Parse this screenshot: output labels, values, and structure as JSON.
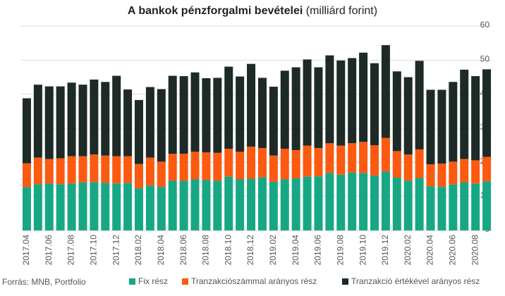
{
  "chart_data": {
    "type": "stacked_bar",
    "title": "A bankok pénzforgalmi bevételei",
    "subtitle": "(milliárd forint)",
    "source": "Forrás: MNB, Portfolio",
    "categories": [
      "2017.04",
      null,
      "2017.06",
      null,
      "2017.08",
      null,
      "2017.10",
      null,
      "2017.12",
      null,
      "2018.02",
      null,
      "2018.04",
      null,
      "2018.06",
      null,
      "2018.08",
      null,
      "2018.10",
      null,
      "2018.12",
      null,
      "2019.02",
      null,
      "2019.04",
      null,
      "2019.06",
      null,
      "2019.08",
      null,
      "2019.10",
      null,
      "2019.12",
      null,
      "2020.02",
      null,
      "2020.04",
      null,
      "2020.06",
      null,
      "2020.08",
      null
    ],
    "series": [
      {
        "name": "Fix rész",
        "color": "#18a784",
        "values": [
          12.7,
          13.6,
          13.8,
          13.6,
          13.8,
          14.1,
          14.2,
          14.0,
          13.8,
          14.0,
          12.4,
          13.2,
          12.8,
          14.6,
          14.6,
          15.0,
          14.8,
          14.6,
          15.8,
          15.0,
          15.2,
          15.6,
          14.3,
          15.0,
          15.3,
          15.8,
          15.9,
          16.9,
          16.4,
          17.0,
          16.9,
          16.1,
          17.3,
          15.5,
          14.6,
          15.4,
          13.0,
          12.8,
          13.5,
          14.1,
          13.8,
          14.4
        ]
      },
      {
        "name": "Tranzakciószámmal arányos rész",
        "color": "#fb5a10",
        "values": [
          7.0,
          7.8,
          7.2,
          7.6,
          8.0,
          7.7,
          8.1,
          8.0,
          8.0,
          7.8,
          7.1,
          8.2,
          7.4,
          7.9,
          7.9,
          8.1,
          8.1,
          8.2,
          8.2,
          8.1,
          9.4,
          8.6,
          7.7,
          9.0,
          8.3,
          9.1,
          8.3,
          8.7,
          8.5,
          8.6,
          9.1,
          8.9,
          9.9,
          7.8,
          7.7,
          8.4,
          6.4,
          6.8,
          6.7,
          6.9,
          6.8,
          7.2
        ]
      },
      {
        "name": "Tranzakció értékével arányos rész",
        "color": "#1d2a27",
        "values": [
          19.1,
          21.4,
          21.3,
          21.1,
          21.6,
          21.0,
          22.0,
          21.6,
          23.6,
          19.6,
          18.8,
          20.7,
          21.3,
          22.9,
          22.8,
          23.3,
          21.8,
          22.0,
          24.1,
          22.1,
          24.3,
          20.6,
          20.2,
          22.9,
          24.3,
          25.3,
          23.7,
          25.8,
          25.0,
          25.0,
          26.2,
          24.1,
          27.2,
          23.4,
          22.7,
          26.0,
          21.9,
          21.7,
          23.4,
          26.2,
          24.7,
          25.7
        ]
      }
    ],
    "ylim": [
      0,
      60
    ],
    "yticks": [
      0,
      10,
      20,
      30,
      40,
      50,
      60
    ],
    "grid": true
  }
}
